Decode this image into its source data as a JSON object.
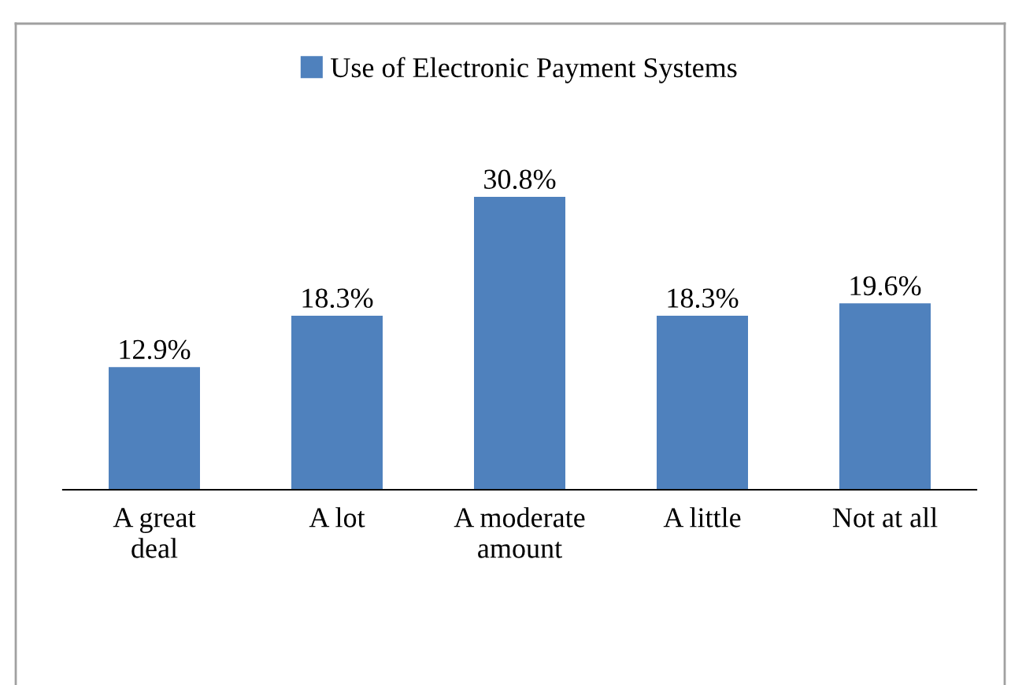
{
  "chart_data": {
    "type": "bar",
    "categories": [
      "A great deal",
      "A lot",
      "A moderate amount",
      "A little",
      "Not at all"
    ],
    "series": [
      {
        "name": "Use of Electronic Payment Systems",
        "color": "#4f81bd",
        "values": [
          12.9,
          18.3,
          30.8,
          18.3,
          19.6
        ],
        "value_labels": [
          "12.9%",
          "18.3%",
          "30.8%",
          "18.3%",
          "19.6%"
        ]
      }
    ],
    "legend": "top"
  }
}
